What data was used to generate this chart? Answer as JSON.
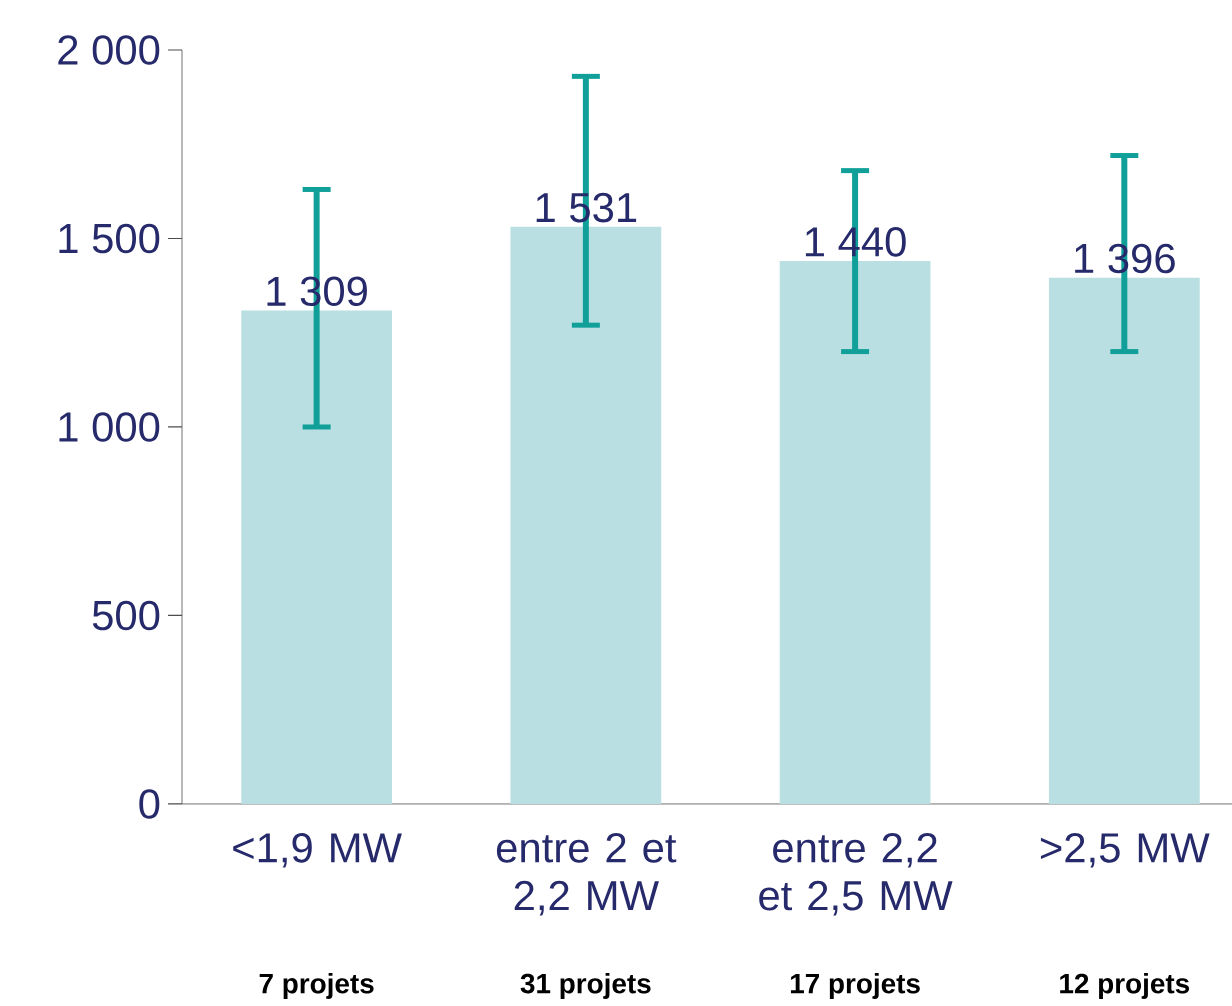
{
  "chart_data": {
    "type": "bar",
    "categories": [
      "<1,9 MW",
      "entre 2 et 2,2 MW",
      "entre 2,2 et 2,5 MW",
      ">2,5 MW"
    ],
    "values": [
      1309,
      1531,
      1440,
      1396
    ],
    "value_labels": [
      "1 309",
      "1 531",
      "1 440",
      "1 396"
    ],
    "errors": [
      [
        1000,
        1630
      ],
      [
        1270,
        1930
      ],
      [
        1200,
        1680
      ],
      [
        1200,
        1720
      ]
    ],
    "color": "#b9dfe2",
    "ylim": [
      0,
      2000
    ],
    "yticks": [
      0,
      500,
      {
        "value": 1000,
        "label": "1 000"
      },
      {
        "value": 1500,
        "label": "1 500"
      },
      {
        "value": 2000,
        "label": "2 000"
      }
    ],
    "grid": false,
    "annotations": [
      "7 projets",
      "31 projets",
      "17 projets",
      "12 projets"
    ]
  }
}
